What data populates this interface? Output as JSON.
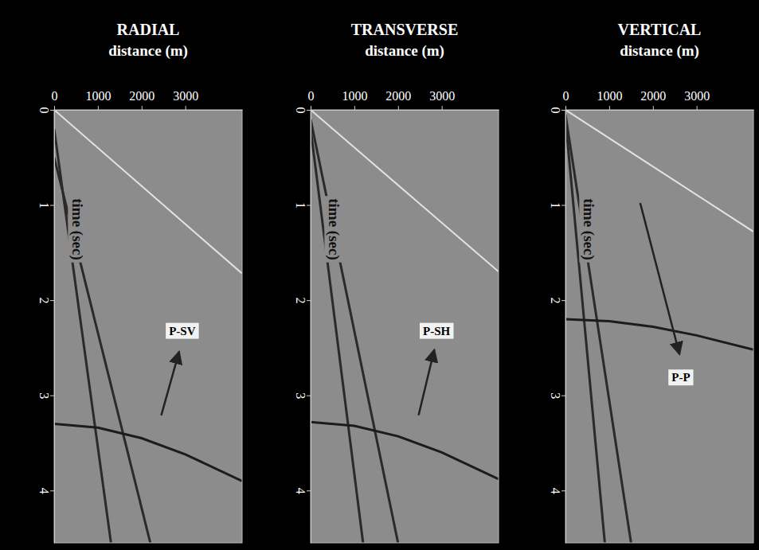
{
  "chart_data": [
    {
      "type": "line",
      "title": "RADIAL",
      "x_label": "distance (m)",
      "y_label": "time (sec)",
      "xlim": [
        0,
        4300
      ],
      "ylim": [
        0,
        4.55
      ],
      "xticks": [
        0,
        1000,
        2000,
        3000
      ],
      "yticks": [
        0,
        1,
        2,
        3,
        4
      ],
      "series": [
        {
          "color": "#e2e2e2",
          "x": [
            0,
            4300
          ],
          "values": [
            0.0,
            1.72
          ]
        },
        {
          "color": "#2a2a2a",
          "x": [
            0,
            1300
          ],
          "values": [
            0.2,
            4.55
          ]
        },
        {
          "color": "#2a2a2a",
          "x": [
            0,
            2200
          ],
          "values": [
            0.5,
            4.55
          ]
        },
        {
          "color": "#1c1c1c",
          "x": [
            0,
            1000,
            2000,
            3000,
            4300
          ],
          "values": [
            3.3,
            3.34,
            3.45,
            3.62,
            3.9
          ]
        }
      ],
      "annotations": [
        {
          "text": "P-SV",
          "x": 2930,
          "y": 2.32,
          "arrow": {
            "x": [
              2450,
              2860
            ],
            "y": [
              3.21,
              2.54
            ]
          }
        }
      ]
    },
    {
      "type": "line",
      "title": "TRANSVERSE",
      "x_label": "distance (m)",
      "y_label": "time (sec)",
      "xlim": [
        0,
        4300
      ],
      "ylim": [
        0,
        4.55
      ],
      "xticks": [
        0,
        1000,
        2000,
        3000
      ],
      "yticks": [
        0,
        1,
        2,
        3,
        4
      ],
      "series": [
        {
          "color": "#e2e2e2",
          "x": [
            0,
            4300
          ],
          "values": [
            0.0,
            1.7
          ]
        },
        {
          "color": "#2a2a2a",
          "x": [
            0,
            1200
          ],
          "values": [
            0.2,
            4.55
          ]
        },
        {
          "color": "#2a2a2a",
          "x": [
            0,
            2000
          ],
          "values": [
            0.1,
            4.55
          ]
        },
        {
          "color": "#1c1c1c",
          "x": [
            0,
            1000,
            2000,
            3000,
            4300
          ],
          "values": [
            3.28,
            3.32,
            3.43,
            3.6,
            3.88
          ]
        }
      ],
      "annotations": [
        {
          "text": "P-SH",
          "x": 2880,
          "y": 2.32,
          "arrow": {
            "x": [
              2470,
              2830
            ],
            "y": [
              3.21,
              2.52
            ]
          }
        }
      ]
    },
    {
      "type": "line",
      "title": "VERTICAL",
      "x_label": "distance (m)",
      "y_label": "time (sec)",
      "xlim": [
        0,
        4300
      ],
      "ylim": [
        0,
        4.55
      ],
      "xticks": [
        0,
        1000,
        2000,
        3000
      ],
      "yticks": [
        0,
        1,
        2,
        3,
        4
      ],
      "series": [
        {
          "color": "#e2e2e2",
          "x": [
            0,
            4300
          ],
          "values": [
            0.0,
            1.28
          ]
        },
        {
          "color": "#2a2a2a",
          "x": [
            0,
            900
          ],
          "values": [
            0.1,
            4.55
          ]
        },
        {
          "color": "#2a2a2a",
          "x": [
            0,
            1500
          ],
          "values": [
            0.05,
            4.55
          ]
        },
        {
          "color": "#1c1c1c",
          "x": [
            0,
            1000,
            2000,
            3000,
            4300
          ],
          "values": [
            2.2,
            2.22,
            2.28,
            2.37,
            2.52
          ]
        }
      ],
      "annotations": [
        {
          "text": "P-P",
          "x": 2640,
          "y": 2.81,
          "arrow": {
            "x": [
              1710,
              2610
            ],
            "y": [
              0.98,
              2.57
            ]
          }
        }
      ]
    }
  ]
}
